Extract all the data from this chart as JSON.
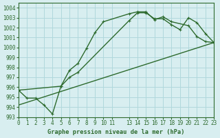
{
  "title": "Graphe pression niveau de la mer (hPa)",
  "xlim": [
    0,
    23
  ],
  "ylim": [
    993,
    1004.5
  ],
  "yticks": [
    993,
    994,
    995,
    996,
    997,
    998,
    999,
    1000,
    1001,
    1002,
    1003,
    1004
  ],
  "xticks": [
    0,
    1,
    2,
    3,
    4,
    5,
    6,
    7,
    8,
    9,
    10,
    11,
    13,
    14,
    15,
    16,
    17,
    18,
    19,
    20,
    21,
    22,
    23
  ],
  "bg_color": "#d8eef0",
  "grid_color": "#b0d8dc",
  "line_color": "#2d6a2d",
  "line1_x": [
    0,
    1,
    2,
    3,
    4,
    5,
    6,
    7,
    8,
    9,
    10,
    13,
    14,
    15,
    16,
    17,
    18,
    20,
    21,
    22,
    23
  ],
  "line1_y": [
    995.7,
    994.9,
    994.9,
    994.2,
    993.3,
    996.1,
    997.7,
    998.4,
    999.9,
    1001.5,
    1002.6,
    1003.4,
    1003.6,
    1003.6,
    1002.8,
    1003.1,
    1002.6,
    1002.2,
    1001.1,
    1000.6,
    1000.5
  ],
  "line2_x": [
    0,
    5,
    6,
    7,
    13,
    14,
    15,
    16,
    17,
    18,
    19,
    20,
    21,
    22,
    23
  ],
  "line2_y": [
    995.7,
    996.1,
    997.0,
    997.5,
    1002.7,
    1003.5,
    1003.5,
    1002.9,
    1002.9,
    1002.3,
    1001.8,
    1003.0,
    1002.5,
    1001.4,
    1000.5
  ],
  "line3_x": [
    0,
    23
  ],
  "line3_y": [
    994.2,
    1000.5
  ]
}
